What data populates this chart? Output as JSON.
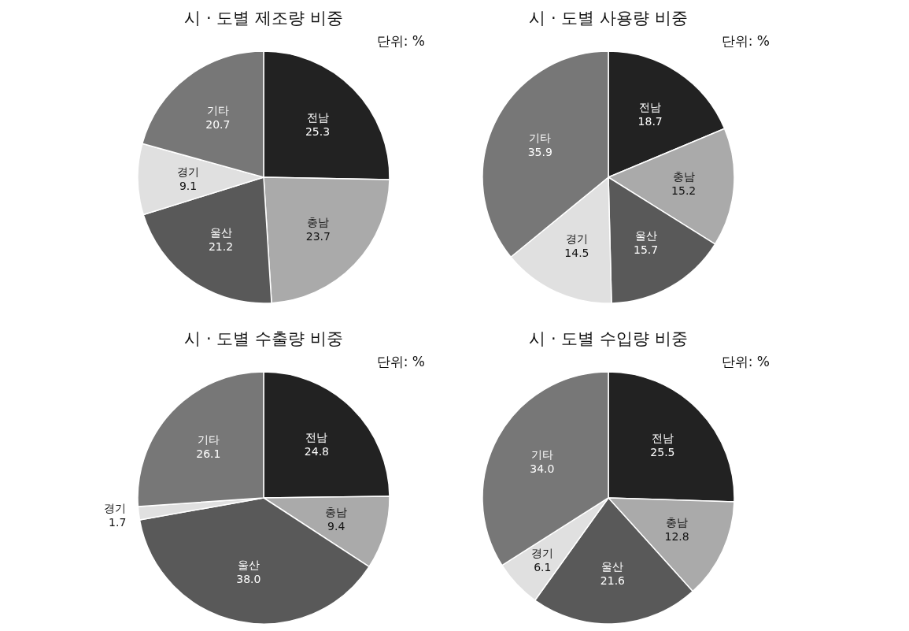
{
  "chart_data": [
    {
      "type": "pie",
      "title": "시 · 도별 제조량 비중",
      "annotations": [
        "단위: %"
      ],
      "categories": [
        "전남",
        "충남",
        "울산",
        "경기",
        "기타"
      ],
      "values": [
        25.3,
        23.7,
        21.2,
        9.1,
        20.7
      ],
      "value_labels": [
        "25.3",
        "23.7",
        "21.2",
        "9.1",
        "20.7"
      ],
      "colors": [
        "#222222",
        "#aaaaaa",
        "#595959",
        "#e0e0e0",
        "#777777"
      ]
    },
    {
      "type": "pie",
      "title": "시 · 도별 사용량 비중",
      "annotations": [
        "단위: %"
      ],
      "categories": [
        "전남",
        "충남",
        "울산",
        "경기",
        "기타"
      ],
      "values": [
        18.7,
        15.2,
        15.7,
        14.5,
        35.9
      ],
      "value_labels": [
        "18.7",
        "15.2",
        "15.7",
        "14.5",
        "35.9"
      ],
      "colors": [
        "#222222",
        "#aaaaaa",
        "#595959",
        "#e0e0e0",
        "#777777"
      ]
    },
    {
      "type": "pie",
      "title": "시 · 도별 수출량 비중",
      "annotations": [
        "단위: %"
      ],
      "categories": [
        "전남",
        "충남",
        "울산",
        "경기",
        "기타"
      ],
      "values": [
        24.8,
        9.4,
        38.0,
        1.7,
        26.1
      ],
      "value_labels": [
        "24.8",
        "9.4",
        "38.0",
        "1.7",
        "26.1"
      ],
      "colors": [
        "#222222",
        "#aaaaaa",
        "#595959",
        "#e0e0e0",
        "#777777"
      ]
    },
    {
      "type": "pie",
      "title": "시 · 도별 수입량 비중",
      "annotations": [
        "단위: %"
      ],
      "categories": [
        "전남",
        "충남",
        "울산",
        "경기",
        "기타"
      ],
      "values": [
        25.5,
        12.8,
        21.6,
        6.1,
        34.0
      ],
      "value_labels": [
        "25.5",
        "12.8",
        "21.6",
        "6.1",
        "34.0"
      ],
      "colors": [
        "#222222",
        "#aaaaaa",
        "#595959",
        "#e0e0e0",
        "#777777"
      ]
    }
  ]
}
